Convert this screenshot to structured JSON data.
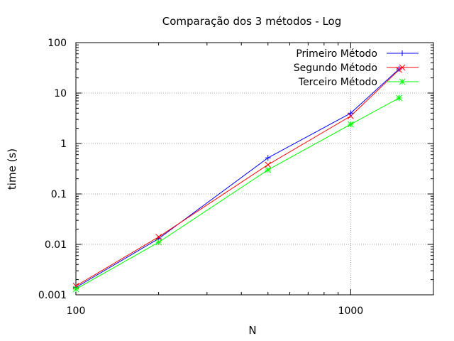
{
  "chart_data": {
    "type": "line",
    "title": "Comparação dos 3 métodos - Log",
    "xlabel": "N",
    "ylabel": "time (s)",
    "xscale": "log",
    "yscale": "log",
    "xlim": [
      100,
      2000
    ],
    "ylim": [
      0.001,
      100
    ],
    "grid": true,
    "legend_position": "top-right",
    "x_ticks": [
      {
        "value": 100,
        "label": "100"
      },
      {
        "value": 1000,
        "label": "1000"
      }
    ],
    "x_minor_ticks": [
      200,
      300,
      400,
      500,
      600,
      700,
      800,
      900,
      2000
    ],
    "y_ticks": [
      {
        "value": 0.001,
        "label": "0.001"
      },
      {
        "value": 0.01,
        "label": "0.01"
      },
      {
        "value": 0.1,
        "label": "0.1"
      },
      {
        "value": 1,
        "label": "1"
      },
      {
        "value": 10,
        "label": "10"
      },
      {
        "value": 100,
        "label": "100"
      }
    ],
    "series": [
      {
        "name": "Primeiro Método",
        "color": "#0000ff",
        "marker": "plus",
        "x": [
          100,
          200,
          500,
          1000,
          1500
        ],
        "y": [
          0.0014,
          0.013,
          0.52,
          4.0,
          30
        ]
      },
      {
        "name": "Segundo Método",
        "color": "#ff0000",
        "marker": "cross",
        "x": [
          100,
          200,
          500,
          1000,
          1500
        ],
        "y": [
          0.0015,
          0.014,
          0.38,
          3.5,
          29
        ]
      },
      {
        "name": "Terceiro Método",
        "color": "#00ff00",
        "marker": "star",
        "x": [
          100,
          200,
          500,
          1000,
          1500
        ],
        "y": [
          0.0013,
          0.011,
          0.3,
          2.4,
          8.0
        ]
      }
    ]
  }
}
